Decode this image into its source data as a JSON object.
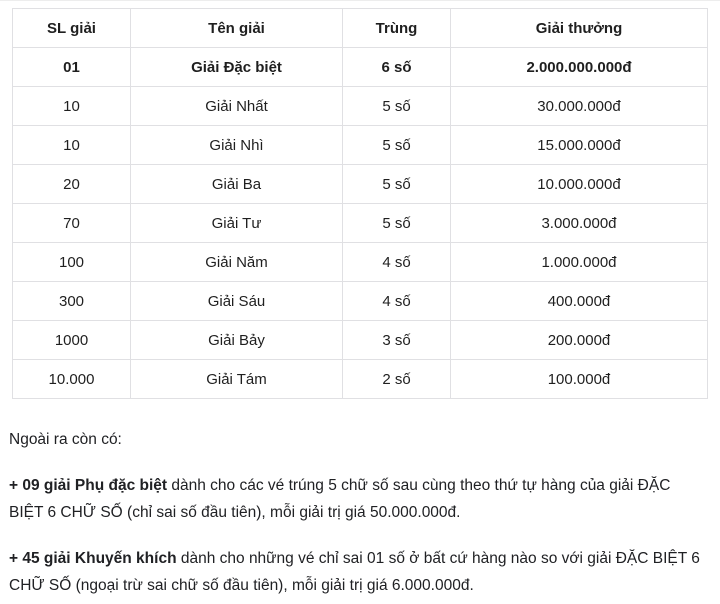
{
  "colors": {
    "background": "#ffffff",
    "table_border": "#e0e0e3",
    "text": "#1f1f1f",
    "top_rule": "#ededed"
  },
  "prize_table": {
    "columns": [
      "SL giải",
      "Tên giải",
      "Trùng",
      "Giải thưởng"
    ],
    "rows": [
      {
        "quantity": "01",
        "name": "Giải Đặc biệt",
        "match": "6 số",
        "prize": "2.000.000.000đ",
        "highlight": true
      },
      {
        "quantity": "10",
        "name": "Giải Nhất",
        "match": "5 số",
        "prize": "30.000.000đ",
        "highlight": false
      },
      {
        "quantity": "10",
        "name": "Giải Nhì",
        "match": "5 số",
        "prize": "15.000.000đ",
        "highlight": false
      },
      {
        "quantity": "20",
        "name": "Giải Ba",
        "match": "5 số",
        "prize": "10.000.000đ",
        "highlight": false
      },
      {
        "quantity": "70",
        "name": "Giải Tư",
        "match": "5 số",
        "prize": "3.000.000đ",
        "highlight": false
      },
      {
        "quantity": "100",
        "name": "Giải Năm",
        "match": "4 số",
        "prize": "1.000.000đ",
        "highlight": false
      },
      {
        "quantity": "300",
        "name": "Giải Sáu",
        "match": "4 số",
        "prize": "400.000đ",
        "highlight": false
      },
      {
        "quantity": "1000",
        "name": "Giải Bảy",
        "match": "3 số",
        "prize": "200.000đ",
        "highlight": false
      },
      {
        "quantity": "10.000",
        "name": "Giải Tám",
        "match": "2 số",
        "prize": "100.000đ",
        "highlight": false
      }
    ]
  },
  "notes": {
    "intro": "Ngoài ra còn có:",
    "items": [
      {
        "lead": "+ 09 giải Phụ đặc biệt",
        "text": " dành cho các vé trúng 5 chữ số sau cùng theo thứ tự hàng của giải ĐẶC BIỆT 6 CHỮ SỐ (chỉ sai số đầu tiên), mỗi giải trị giá 50.000.000đ."
      },
      {
        "lead": "+ 45 giải Khuyến khích",
        "text": " dành cho những vé chỉ sai 01 số ở bất cứ hàng nào so với giải ĐẶC BIỆT 6 CHỮ SỐ (ngoại trừ sai chữ số đầu tiên), mỗi giải trị giá 6.000.000đ."
      }
    ]
  }
}
